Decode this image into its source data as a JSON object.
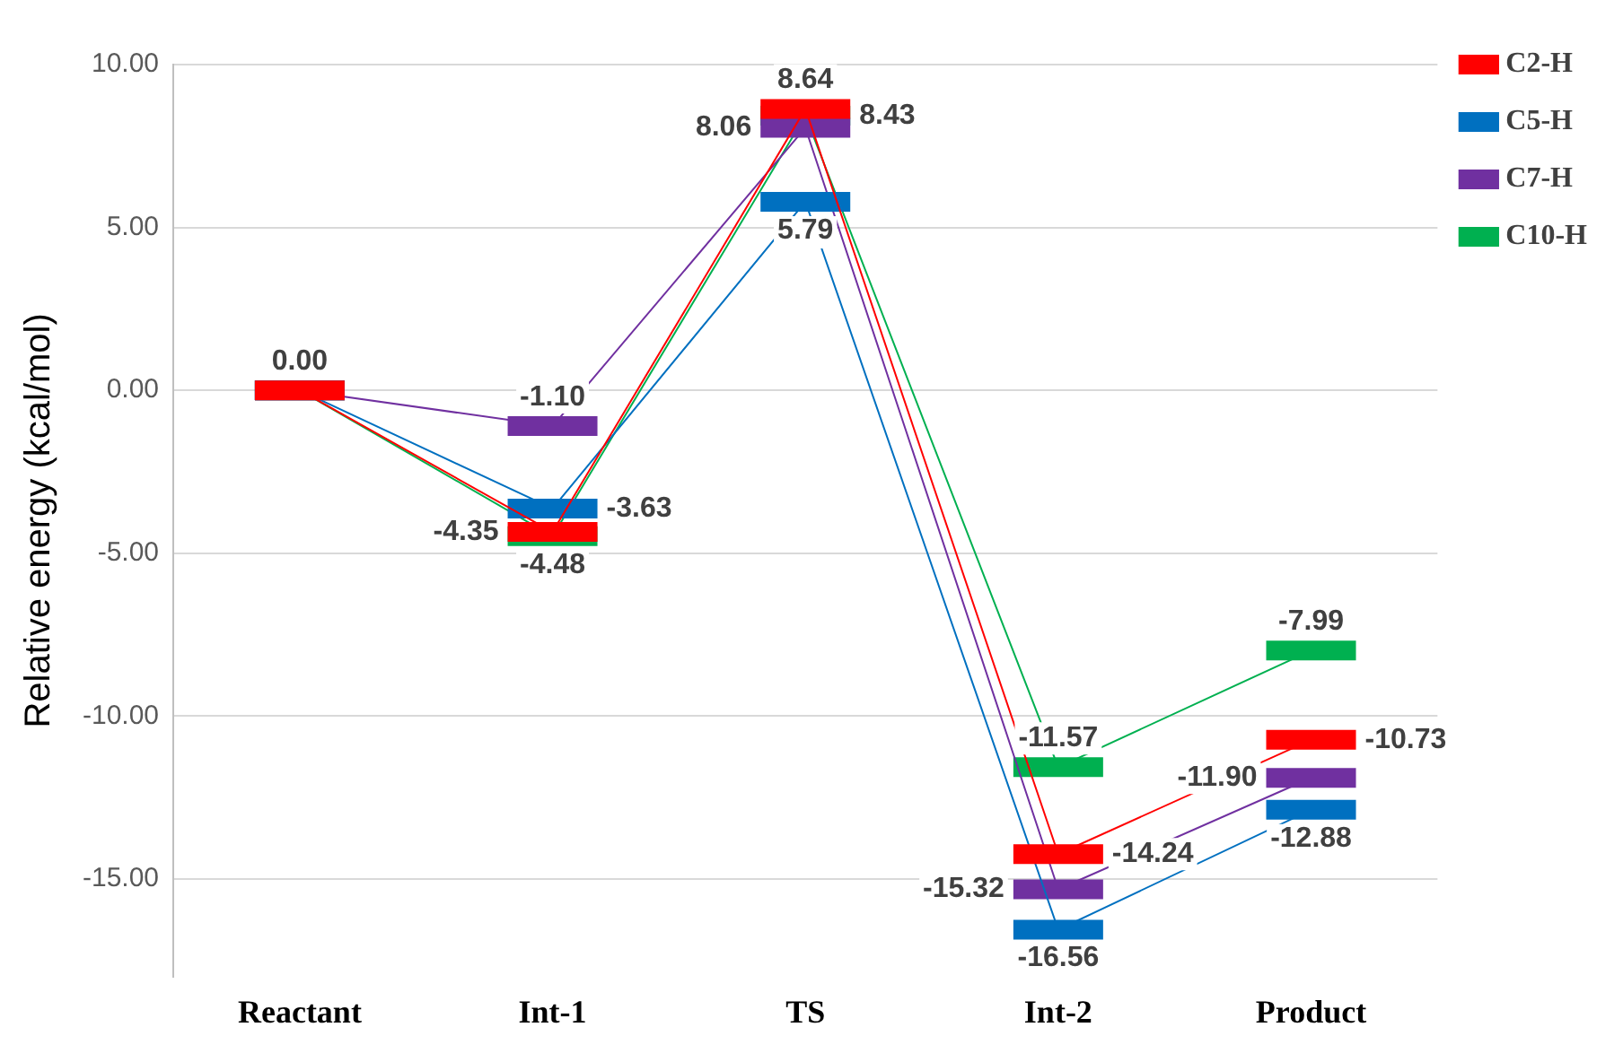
{
  "chart_data": {
    "type": "line",
    "ylabel": "Relative energy (kcal/mol)",
    "categories": [
      "Reactant",
      "Int-1",
      "TS",
      "Int-2",
      "Product"
    ],
    "ylim": [
      -18,
      10
    ],
    "yticks": [
      {
        "value": -15,
        "label": "-15.00"
      },
      {
        "value": -10,
        "label": "-10.00"
      },
      {
        "value": -5,
        "label": "-5.00"
      },
      {
        "value": 0,
        "label": "0.00"
      },
      {
        "value": 5,
        "label": "5.00"
      },
      {
        "value": 10,
        "label": "10.00"
      }
    ],
    "grid": "y",
    "legend": "top right",
    "series": [
      {
        "name": "C2-H",
        "color": "#ff0000",
        "values": [
          0,
          -4.35,
          8.64,
          -14.24,
          -10.73
        ],
        "value_labels": [
          null,
          "-4.35",
          "8.64",
          "-14.24",
          "-10.73"
        ]
      },
      {
        "name": "C5-H",
        "color": "#0070c0",
        "values": [
          0,
          -3.63,
          5.79,
          -16.56,
          -12.88
        ],
        "value_labels": [
          null,
          "-3.63",
          "5.79",
          "-16.56",
          "-12.88"
        ]
      },
      {
        "name": "C7-H",
        "color": "#7030a0",
        "values": [
          0,
          -1.1,
          8.06,
          -15.32,
          -11.9
        ],
        "value_labels": [
          null,
          "-1.10",
          "8.06",
          "-15.32",
          "-11.90"
        ]
      },
      {
        "name": "C10-H",
        "color": "#00b050",
        "values": [
          0,
          -4.48,
          8.43,
          -11.57,
          -7.99
        ],
        "value_labels": [
          "0.00",
          "-4.48",
          "8.43",
          "-11.57",
          "-7.99"
        ]
      }
    ]
  }
}
